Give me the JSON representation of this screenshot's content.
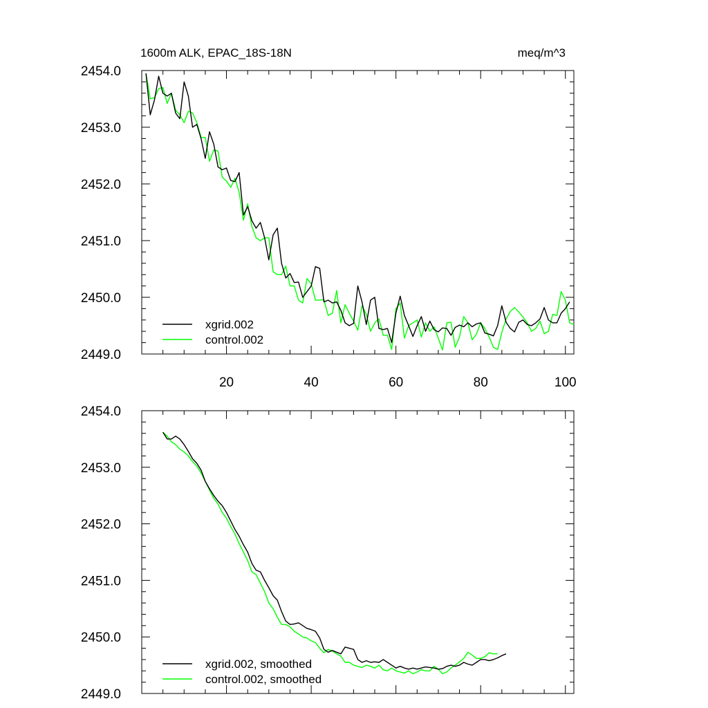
{
  "figure": {
    "title_left": "1600m ALK, EPAC_18S-18N",
    "title_right": "meq/m^3"
  },
  "chart_data": [
    {
      "type": "line",
      "title": "1600m ALK, EPAC_18S-18N",
      "units": "meq/m^3",
      "xlim": [
        0,
        102
      ],
      "ylim": [
        2449.0,
        2454.0
      ],
      "xticks": [
        20,
        40,
        60,
        80,
        100
      ],
      "xtick_labels": [
        "20",
        "40",
        "60",
        "80",
        "100"
      ],
      "yticks": [
        2449.0,
        2450.0,
        2451.0,
        2452.0,
        2453.0,
        2454.0
      ],
      "ytick_labels": [
        "2449.0",
        "2450.0",
        "2451.0",
        "2452.0",
        "2453.0",
        "2454.0"
      ],
      "legend_position": "bottom-left",
      "series": [
        {
          "name": "xgrid.002",
          "color": "#000000",
          "x_start": 1,
          "values": [
            2453.95,
            2453.22,
            2453.48,
            2453.9,
            2453.6,
            2453.55,
            2453.6,
            2453.25,
            2453.15,
            2453.8,
            2453.55,
            2453.0,
            2453.05,
            2452.8,
            2452.45,
            2452.92,
            2452.7,
            2452.3,
            2452.25,
            2452.28,
            2452.06,
            2452.04,
            2452.2,
            2451.45,
            2451.6,
            2451.35,
            2451.22,
            2451.32,
            2451.05,
            2450.66,
            2451.1,
            2451.22,
            2450.6,
            2450.34,
            2450.42,
            2450.26,
            2450.27,
            2450.0,
            2450.1,
            2450.2,
            2450.54,
            2450.51,
            2449.92,
            2449.95,
            2449.9,
            2449.92,
            2449.77,
            2449.55,
            2449.5,
            2449.54,
            2450.2,
            2449.92,
            2449.52,
            2449.95,
            2450.0,
            2449.45,
            2449.43,
            2449.45,
            2449.2,
            2449.72,
            2450.02,
            2449.68,
            2449.5,
            2449.31,
            2449.5,
            2449.66,
            2449.4,
            2449.58,
            2449.43,
            2449.39,
            2449.46,
            2449.45,
            2449.33,
            2449.47,
            2449.51,
            2449.48,
            2449.55,
            2449.48,
            2449.53,
            2449.55,
            2449.37,
            2449.35,
            2449.32,
            2449.5,
            2449.85,
            2449.56,
            2449.45,
            2449.39,
            2449.56,
            2449.6,
            2449.52,
            2449.5,
            2449.55,
            2449.62,
            2449.82,
            2449.6,
            2449.55,
            2449.55,
            2449.72,
            2449.8,
            2449.92
          ]
        },
        {
          "name": "control.002",
          "color": "#00ff00",
          "x_start": 1,
          "values": [
            2453.95,
            2453.5,
            2453.52,
            2453.68,
            2453.7,
            2453.42,
            2453.6,
            2453.3,
            2453.22,
            2453.08,
            2453.28,
            2453.25,
            2453.08,
            2452.82,
            2452.82,
            2452.4,
            2452.6,
            2452.58,
            2452.12,
            2452.05,
            2451.94,
            2452.1,
            2451.85,
            2451.36,
            2451.65,
            2451.25,
            2451.05,
            2451.0,
            2451.05,
            2451.05,
            2450.45,
            2450.4,
            2450.4,
            2450.55,
            2450.2,
            2450.2,
            2449.95,
            2449.9,
            2450.33,
            2450.24,
            2449.95,
            2449.95,
            2449.96,
            2449.68,
            2449.72,
            2450.12,
            2449.55,
            2449.87,
            2449.72,
            2449.58,
            2449.42,
            2449.85,
            2449.7,
            2449.4,
            2449.55,
            2449.62,
            2449.33,
            2449.33,
            2449.08,
            2449.8,
            2449.9,
            2449.28,
            2449.5,
            2449.55,
            2449.6,
            2449.3,
            2449.55,
            2449.4,
            2449.48,
            2449.28,
            2449.07,
            2449.55,
            2449.56,
            2449.12,
            2449.3,
            2449.66,
            2449.55,
            2449.25,
            2449.35,
            2449.55,
            2449.45,
            2449.3,
            2449.12,
            2449.08,
            2449.38,
            2449.62,
            2449.75,
            2449.82,
            2449.74,
            2449.65,
            2449.55,
            2449.4,
            2449.45,
            2449.58,
            2449.36,
            2449.4,
            2449.7,
            2449.68,
            2450.1,
            2449.95,
            2449.55,
            2449.52
          ]
        }
      ]
    },
    {
      "type": "line",
      "title": "",
      "xlim": [
        0,
        102
      ],
      "ylim": [
        2449.0,
        2454.0
      ],
      "xticks": [
        20,
        40,
        60,
        80,
        100
      ],
      "yticks": [
        2449.0,
        2450.0,
        2451.0,
        2452.0,
        2453.0,
        2454.0
      ],
      "ytick_labels": [
        "2449.0",
        "2450.0",
        "2451.0",
        "2452.0",
        "2453.0",
        "2454.0"
      ],
      "legend_position": "bottom-left",
      "series": [
        {
          "name": "xgrid.002, smoothed",
          "color": "#000000",
          "x_start": 5,
          "values": [
            2453.62,
            2453.5,
            2453.5,
            2453.55,
            2453.5,
            2453.4,
            2453.28,
            2453.15,
            2453.07,
            2452.95,
            2452.75,
            2452.62,
            2452.5,
            2452.4,
            2452.32,
            2452.2,
            2452.05,
            2451.9,
            2451.78,
            2451.63,
            2451.5,
            2451.3,
            2451.18,
            2451.15,
            2451.0,
            2450.87,
            2450.73,
            2450.65,
            2450.45,
            2450.28,
            2450.22,
            2450.23,
            2450.25,
            2450.2,
            2450.15,
            2450.13,
            2450.1,
            2449.98,
            2449.78,
            2449.73,
            2449.76,
            2449.73,
            2449.7,
            2449.82,
            2449.8,
            2449.78,
            2449.6,
            2449.55,
            2449.58,
            2449.55,
            2449.56,
            2449.55,
            2449.6,
            2449.55,
            2449.5,
            2449.45,
            2449.48,
            2449.45,
            2449.43,
            2449.45,
            2449.43,
            2449.45,
            2449.47,
            2449.46,
            2449.45,
            2449.43,
            2449.44,
            2449.48,
            2449.5,
            2449.48,
            2449.5,
            2449.55,
            2449.52,
            2449.5,
            2449.55,
            2449.6,
            2449.6,
            2449.58,
            2449.6,
            2449.63,
            2449.67,
            2449.7
          ]
        },
        {
          "name": "control.002, smoothed",
          "color": "#00ff00",
          "x_start": 5,
          "values": [
            2453.62,
            2453.55,
            2453.45,
            2453.4,
            2453.32,
            2453.27,
            2453.2,
            2453.1,
            2453.02,
            2452.9,
            2452.75,
            2452.6,
            2452.45,
            2452.35,
            2452.2,
            2452.1,
            2451.95,
            2451.82,
            2451.65,
            2451.5,
            2451.35,
            2451.15,
            2451.1,
            2450.95,
            2450.8,
            2450.6,
            2450.5,
            2450.35,
            2450.22,
            2450.22,
            2450.18,
            2450.1,
            2450.05,
            2450.0,
            2449.98,
            2449.93,
            2449.9,
            2449.8,
            2449.72,
            2449.78,
            2449.75,
            2449.7,
            2449.66,
            2449.55,
            2449.55,
            2449.5,
            2449.48,
            2449.46,
            2449.5,
            2449.48,
            2449.45,
            2449.5,
            2449.42,
            2449.4,
            2449.45,
            2449.4,
            2449.38,
            2449.36,
            2449.4,
            2449.35,
            2449.38,
            2449.42,
            2449.4,
            2449.4,
            2449.48,
            2449.43,
            2449.35,
            2449.38,
            2449.45,
            2449.5,
            2449.56,
            2449.62,
            2449.73,
            2449.68,
            2449.62,
            2449.62,
            2449.65,
            2449.72,
            2449.7,
            2449.7
          ]
        }
      ]
    }
  ]
}
